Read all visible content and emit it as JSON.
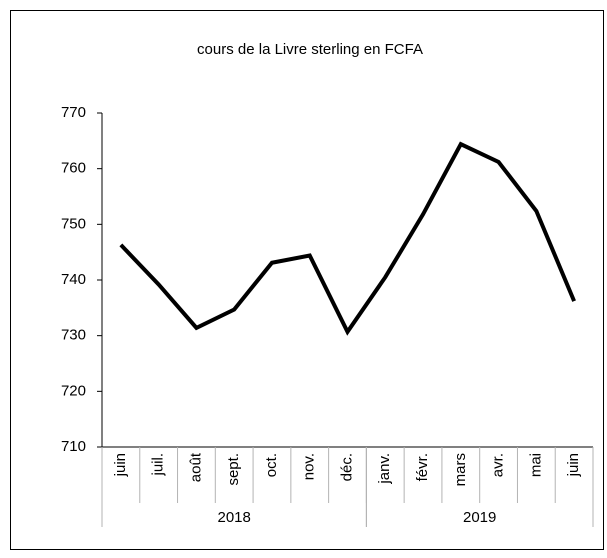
{
  "chart_data": {
    "type": "line",
    "title": "cours de la Livre sterling en FCFA",
    "categories": [
      "juin",
      "juil.",
      "août",
      "sept.",
      "oct.",
      "nov.",
      "déc.",
      "janv.",
      "févr.",
      "mars",
      "avr.",
      "mai",
      "juin"
    ],
    "category_groups": [
      {
        "label": "2018",
        "count": 7
      },
      {
        "label": "2019",
        "count": 6
      }
    ],
    "series": [
      {
        "name": "cours",
        "color": "#000000",
        "values": [
          746.3,
          739.2,
          731.4,
          734.7,
          743.1,
          744.4,
          730.7,
          740.5,
          751.8,
          764.4,
          761.2,
          752.4,
          736.2
        ]
      }
    ],
    "ylim": [
      710,
      770
    ],
    "yticks": [
      710,
      720,
      730,
      740,
      750,
      760,
      770
    ],
    "grid": false
  }
}
